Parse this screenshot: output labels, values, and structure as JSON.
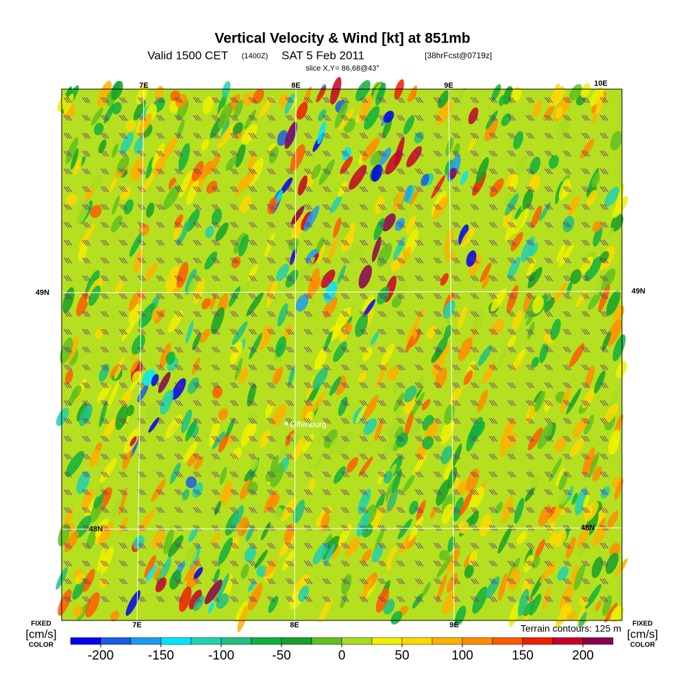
{
  "header": {
    "title": "Vertical Velocity & Wind [kt] at 851mb",
    "valid": "Valid 1500 CET",
    "utc": "(1400Z)",
    "date": "SAT 5 Feb 2011",
    "forecast": "[38hrFcst@0719z]",
    "slice": "slice X,Y= 86,68@43°"
  },
  "map": {
    "lon_top": [
      "7E",
      "8E",
      "9E",
      "10E"
    ],
    "lon_bottom": [
      "7E",
      "8E",
      "9E"
    ],
    "lat_left": "49N",
    "lat_right": "49N",
    "lat_inner_left": "48N",
    "lat_inner_right": "48N",
    "place": "Offenburg",
    "terrain_note": "Terrain contours: 125 m"
  },
  "colorbar": {
    "fixed": "FIXED",
    "unit": "[cm/s]",
    "color_word": "COLOR",
    "range": [
      -225,
      225
    ],
    "ticks": [
      -200,
      -150,
      -100,
      -50,
      0,
      50,
      100,
      150,
      200
    ],
    "colors": [
      "#0000f0",
      "#1a5ae8",
      "#1e9bf0",
      "#00e5ff",
      "#20d0b0",
      "#20c080",
      "#10b040",
      "#18a028",
      "#60c020",
      "#a8dc20",
      "#f0f000",
      "#ffd800",
      "#ffb000",
      "#ff8c00",
      "#ff5a00",
      "#f01e00",
      "#c80028",
      "#8c0050"
    ]
  }
}
